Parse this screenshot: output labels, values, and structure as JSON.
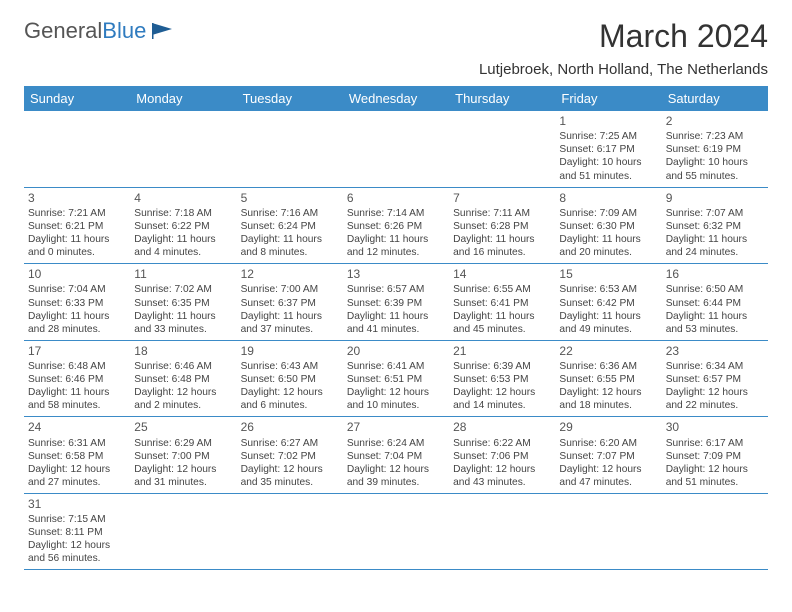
{
  "logo": {
    "text1": "General",
    "text2": "Blue"
  },
  "title": "March 2024",
  "location": "Lutjebroek, North Holland, The Netherlands",
  "colors": {
    "header_bg": "#3b8bc7",
    "header_fg": "#ffffff",
    "rule": "#3b8bc7"
  },
  "day_names": [
    "Sunday",
    "Monday",
    "Tuesday",
    "Wednesday",
    "Thursday",
    "Friday",
    "Saturday"
  ],
  "weeks": [
    [
      null,
      null,
      null,
      null,
      null,
      {
        "n": "1",
        "sr": "Sunrise: 7:25 AM",
        "ss": "Sunset: 6:17 PM",
        "dl": "Daylight: 10 hours and 51 minutes."
      },
      {
        "n": "2",
        "sr": "Sunrise: 7:23 AM",
        "ss": "Sunset: 6:19 PM",
        "dl": "Daylight: 10 hours and 55 minutes."
      }
    ],
    [
      {
        "n": "3",
        "sr": "Sunrise: 7:21 AM",
        "ss": "Sunset: 6:21 PM",
        "dl": "Daylight: 11 hours and 0 minutes."
      },
      {
        "n": "4",
        "sr": "Sunrise: 7:18 AM",
        "ss": "Sunset: 6:22 PM",
        "dl": "Daylight: 11 hours and 4 minutes."
      },
      {
        "n": "5",
        "sr": "Sunrise: 7:16 AM",
        "ss": "Sunset: 6:24 PM",
        "dl": "Daylight: 11 hours and 8 minutes."
      },
      {
        "n": "6",
        "sr": "Sunrise: 7:14 AM",
        "ss": "Sunset: 6:26 PM",
        "dl": "Daylight: 11 hours and 12 minutes."
      },
      {
        "n": "7",
        "sr": "Sunrise: 7:11 AM",
        "ss": "Sunset: 6:28 PM",
        "dl": "Daylight: 11 hours and 16 minutes."
      },
      {
        "n": "8",
        "sr": "Sunrise: 7:09 AM",
        "ss": "Sunset: 6:30 PM",
        "dl": "Daylight: 11 hours and 20 minutes."
      },
      {
        "n": "9",
        "sr": "Sunrise: 7:07 AM",
        "ss": "Sunset: 6:32 PM",
        "dl": "Daylight: 11 hours and 24 minutes."
      }
    ],
    [
      {
        "n": "10",
        "sr": "Sunrise: 7:04 AM",
        "ss": "Sunset: 6:33 PM",
        "dl": "Daylight: 11 hours and 28 minutes."
      },
      {
        "n": "11",
        "sr": "Sunrise: 7:02 AM",
        "ss": "Sunset: 6:35 PM",
        "dl": "Daylight: 11 hours and 33 minutes."
      },
      {
        "n": "12",
        "sr": "Sunrise: 7:00 AM",
        "ss": "Sunset: 6:37 PM",
        "dl": "Daylight: 11 hours and 37 minutes."
      },
      {
        "n": "13",
        "sr": "Sunrise: 6:57 AM",
        "ss": "Sunset: 6:39 PM",
        "dl": "Daylight: 11 hours and 41 minutes."
      },
      {
        "n": "14",
        "sr": "Sunrise: 6:55 AM",
        "ss": "Sunset: 6:41 PM",
        "dl": "Daylight: 11 hours and 45 minutes."
      },
      {
        "n": "15",
        "sr": "Sunrise: 6:53 AM",
        "ss": "Sunset: 6:42 PM",
        "dl": "Daylight: 11 hours and 49 minutes."
      },
      {
        "n": "16",
        "sr": "Sunrise: 6:50 AM",
        "ss": "Sunset: 6:44 PM",
        "dl": "Daylight: 11 hours and 53 minutes."
      }
    ],
    [
      {
        "n": "17",
        "sr": "Sunrise: 6:48 AM",
        "ss": "Sunset: 6:46 PM",
        "dl": "Daylight: 11 hours and 58 minutes."
      },
      {
        "n": "18",
        "sr": "Sunrise: 6:46 AM",
        "ss": "Sunset: 6:48 PM",
        "dl": "Daylight: 12 hours and 2 minutes."
      },
      {
        "n": "19",
        "sr": "Sunrise: 6:43 AM",
        "ss": "Sunset: 6:50 PM",
        "dl": "Daylight: 12 hours and 6 minutes."
      },
      {
        "n": "20",
        "sr": "Sunrise: 6:41 AM",
        "ss": "Sunset: 6:51 PM",
        "dl": "Daylight: 12 hours and 10 minutes."
      },
      {
        "n": "21",
        "sr": "Sunrise: 6:39 AM",
        "ss": "Sunset: 6:53 PM",
        "dl": "Daylight: 12 hours and 14 minutes."
      },
      {
        "n": "22",
        "sr": "Sunrise: 6:36 AM",
        "ss": "Sunset: 6:55 PM",
        "dl": "Daylight: 12 hours and 18 minutes."
      },
      {
        "n": "23",
        "sr": "Sunrise: 6:34 AM",
        "ss": "Sunset: 6:57 PM",
        "dl": "Daylight: 12 hours and 22 minutes."
      }
    ],
    [
      {
        "n": "24",
        "sr": "Sunrise: 6:31 AM",
        "ss": "Sunset: 6:58 PM",
        "dl": "Daylight: 12 hours and 27 minutes."
      },
      {
        "n": "25",
        "sr": "Sunrise: 6:29 AM",
        "ss": "Sunset: 7:00 PM",
        "dl": "Daylight: 12 hours and 31 minutes."
      },
      {
        "n": "26",
        "sr": "Sunrise: 6:27 AM",
        "ss": "Sunset: 7:02 PM",
        "dl": "Daylight: 12 hours and 35 minutes."
      },
      {
        "n": "27",
        "sr": "Sunrise: 6:24 AM",
        "ss": "Sunset: 7:04 PM",
        "dl": "Daylight: 12 hours and 39 minutes."
      },
      {
        "n": "28",
        "sr": "Sunrise: 6:22 AM",
        "ss": "Sunset: 7:06 PM",
        "dl": "Daylight: 12 hours and 43 minutes."
      },
      {
        "n": "29",
        "sr": "Sunrise: 6:20 AM",
        "ss": "Sunset: 7:07 PM",
        "dl": "Daylight: 12 hours and 47 minutes."
      },
      {
        "n": "30",
        "sr": "Sunrise: 6:17 AM",
        "ss": "Sunset: 7:09 PM",
        "dl": "Daylight: 12 hours and 51 minutes."
      }
    ],
    [
      {
        "n": "31",
        "sr": "Sunrise: 7:15 AM",
        "ss": "Sunset: 8:11 PM",
        "dl": "Daylight: 12 hours and 56 minutes."
      },
      null,
      null,
      null,
      null,
      null,
      null
    ]
  ]
}
